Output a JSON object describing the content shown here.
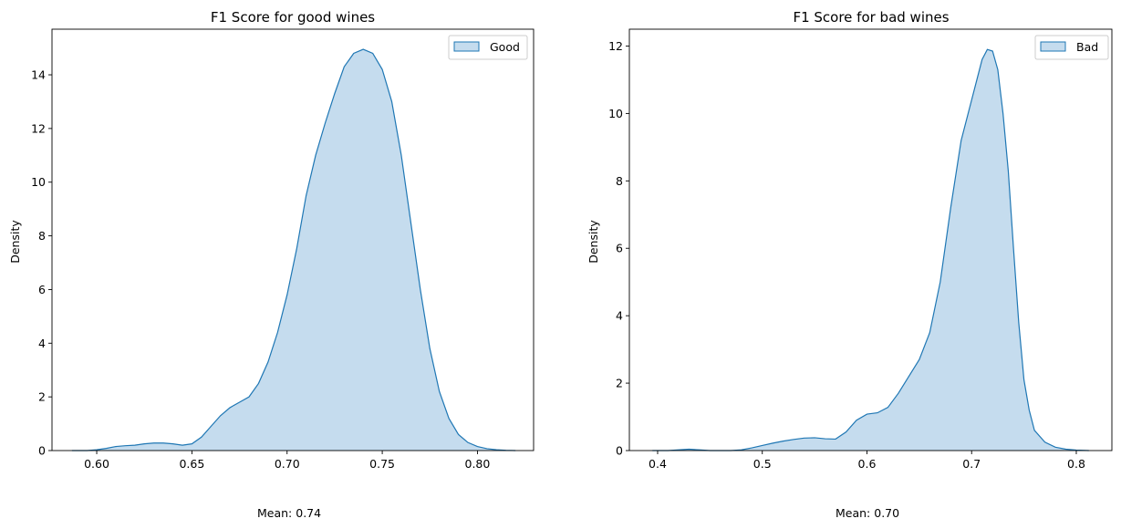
{
  "colors": {
    "line": "#1f77b4",
    "fill": "#c5dcee",
    "axis": "#000000"
  },
  "chart_data": [
    {
      "type": "area",
      "title": "F1 Score for good wines",
      "xlabel": "",
      "ylabel": "Density",
      "xlim": [
        0.5765,
        0.8295
      ],
      "ylim": [
        0,
        15.7
      ],
      "xticks": [
        0.6,
        0.65,
        0.7,
        0.75,
        0.8
      ],
      "xtick_labels": [
        "0.60",
        "0.65",
        "0.70",
        "0.75",
        "0.80"
      ],
      "yticks": [
        0,
        2,
        4,
        6,
        8,
        10,
        12,
        14
      ],
      "ytick_labels": [
        "0",
        "2",
        "4",
        "6",
        "8",
        "10",
        "12",
        "14"
      ],
      "legend": {
        "placement": "top-right",
        "entries": [
          "Good"
        ]
      },
      "caption": "Mean: 0.74",
      "series": [
        {
          "name": "Good",
          "x": [
            0.587,
            0.595,
            0.6,
            0.605,
            0.61,
            0.615,
            0.62,
            0.625,
            0.63,
            0.635,
            0.64,
            0.645,
            0.65,
            0.655,
            0.66,
            0.665,
            0.67,
            0.675,
            0.68,
            0.685,
            0.69,
            0.695,
            0.7,
            0.705,
            0.71,
            0.715,
            0.72,
            0.725,
            0.73,
            0.735,
            0.74,
            0.745,
            0.75,
            0.755,
            0.76,
            0.765,
            0.77,
            0.775,
            0.78,
            0.785,
            0.79,
            0.795,
            0.8,
            0.805,
            0.81,
            0.815,
            0.82
          ],
          "y": [
            0.0,
            0.0,
            0.03,
            0.08,
            0.15,
            0.18,
            0.2,
            0.25,
            0.28,
            0.28,
            0.25,
            0.2,
            0.25,
            0.5,
            0.9,
            1.3,
            1.6,
            1.8,
            2.0,
            2.5,
            3.3,
            4.4,
            5.8,
            7.5,
            9.5,
            11.0,
            12.2,
            13.3,
            14.3,
            14.8,
            14.95,
            14.8,
            14.2,
            13.0,
            11.0,
            8.5,
            6.0,
            3.8,
            2.2,
            1.2,
            0.6,
            0.3,
            0.15,
            0.07,
            0.03,
            0.01,
            0.0
          ]
        }
      ]
    },
    {
      "type": "area",
      "title": "F1 Score for bad wines",
      "xlabel": "",
      "ylabel": "Density",
      "xlim": [
        0.373,
        0.834
      ],
      "ylim": [
        0,
        12.5
      ],
      "xticks": [
        0.4,
        0.5,
        0.6,
        0.7,
        0.8
      ],
      "xtick_labels": [
        "0.4",
        "0.5",
        "0.6",
        "0.7",
        "0.8"
      ],
      "yticks": [
        0,
        2,
        4,
        6,
        8,
        10,
        12
      ],
      "ytick_labels": [
        "0",
        "2",
        "4",
        "6",
        "8",
        "10",
        "12"
      ],
      "legend": {
        "placement": "top-right",
        "entries": [
          "Bad"
        ]
      },
      "caption": "Mean: 0.70",
      "series": [
        {
          "name": "Bad",
          "x": [
            0.395,
            0.41,
            0.42,
            0.43,
            0.44,
            0.45,
            0.46,
            0.47,
            0.48,
            0.49,
            0.5,
            0.51,
            0.52,
            0.53,
            0.54,
            0.55,
            0.56,
            0.57,
            0.58,
            0.59,
            0.6,
            0.61,
            0.62,
            0.63,
            0.64,
            0.65,
            0.66,
            0.67,
            0.68,
            0.69,
            0.7,
            0.705,
            0.71,
            0.715,
            0.72,
            0.725,
            0.73,
            0.735,
            0.74,
            0.745,
            0.75,
            0.755,
            0.76,
            0.77,
            0.78,
            0.79,
            0.8,
            0.812
          ],
          "y": [
            0.0,
            0.0,
            0.02,
            0.04,
            0.02,
            0.0,
            0.0,
            0.0,
            0.02,
            0.08,
            0.15,
            0.22,
            0.28,
            0.33,
            0.37,
            0.38,
            0.35,
            0.34,
            0.55,
            0.9,
            1.08,
            1.12,
            1.28,
            1.7,
            2.2,
            2.7,
            3.5,
            5.0,
            7.2,
            9.2,
            10.4,
            11.0,
            11.6,
            11.9,
            11.85,
            11.3,
            10.0,
            8.3,
            6.0,
            3.8,
            2.1,
            1.2,
            0.6,
            0.25,
            0.1,
            0.04,
            0.015,
            0.0
          ]
        }
      ]
    }
  ]
}
